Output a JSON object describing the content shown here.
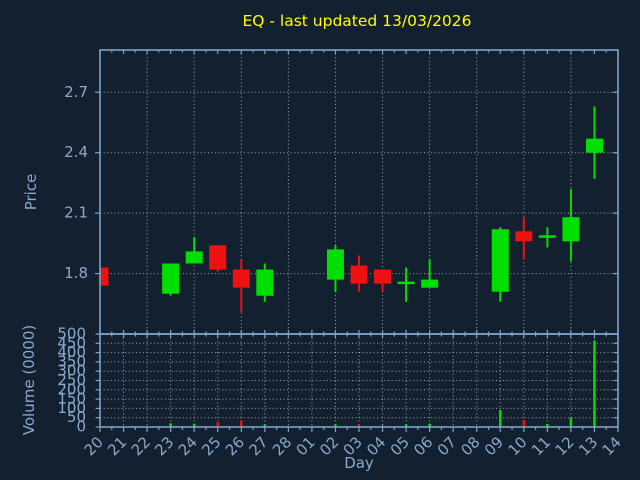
{
  "title": "EQ - last updated 13/03/2026",
  "colors": {
    "background": "#12202f",
    "spine": "#7ea3c9",
    "grid": "#c2c8cf",
    "axis_text": "#8aa9cb",
    "title": "#ffff00",
    "up": "#00df00",
    "down": "#ee1111"
  },
  "chart_data": [
    {
      "type": "candlestick",
      "title": "EQ - last updated 13/03/2026",
      "xlabel": "Day",
      "ylabel": "Price",
      "categories": [
        "20",
        "21",
        "22",
        "23",
        "24",
        "25",
        "26",
        "27",
        "28",
        "01",
        "02",
        "03",
        "04",
        "05",
        "06",
        "07",
        "08",
        "09",
        "10",
        "11",
        "12",
        "13",
        "14"
      ],
      "y_ticks": [
        1.8,
        2.1,
        2.4,
        2.7
      ],
      "ylim": [
        1.5,
        2.91
      ],
      "grid": "dotted; horizontal at each price tick; vertical every 2nd day",
      "legend": "none",
      "up_color": "#00df00",
      "down_color": "#ee1111",
      "candles": [
        {
          "day": "20",
          "open": 1.83,
          "high": 1.83,
          "low": 1.74,
          "close": 1.74
        },
        {
          "day": "23",
          "open": 1.7,
          "high": 1.85,
          "low": 1.69,
          "close": 1.85
        },
        {
          "day": "24",
          "open": 1.85,
          "high": 1.98,
          "low": 1.85,
          "close": 1.91
        },
        {
          "day": "25",
          "open": 1.94,
          "high": 1.94,
          "low": 1.81,
          "close": 1.82
        },
        {
          "day": "26",
          "open": 1.82,
          "high": 1.87,
          "low": 1.61,
          "close": 1.73
        },
        {
          "day": "27",
          "open": 1.69,
          "high": 1.85,
          "low": 1.66,
          "close": 1.82
        },
        {
          "day": "02",
          "open": 1.77,
          "high": 1.94,
          "low": 1.71,
          "close": 1.92
        },
        {
          "day": "03",
          "open": 1.84,
          "high": 1.89,
          "low": 1.71,
          "close": 1.75
        },
        {
          "day": "04",
          "open": 1.82,
          "high": 1.82,
          "low": 1.71,
          "close": 1.75
        },
        {
          "day": "05",
          "open": 1.75,
          "high": 1.83,
          "low": 1.66,
          "close": 1.76
        },
        {
          "day": "06",
          "open": 1.73,
          "high": 1.87,
          "low": 1.73,
          "close": 1.77
        },
        {
          "day": "09",
          "open": 1.71,
          "high": 2.03,
          "low": 1.66,
          "close": 2.02
        },
        {
          "day": "10",
          "open": 2.01,
          "high": 2.08,
          "low": 1.87,
          "close": 1.96
        },
        {
          "day": "11",
          "open": 1.98,
          "high": 2.03,
          "low": 1.93,
          "close": 1.99
        },
        {
          "day": "12",
          "open": 1.96,
          "high": 2.22,
          "low": 1.86,
          "close": 2.08
        },
        {
          "day": "13",
          "open": 2.4,
          "high": 2.63,
          "low": 2.27,
          "close": 2.47
        }
      ]
    },
    {
      "type": "bar",
      "xlabel": "Day",
      "ylabel": "Volume (0000)",
      "y_ticks": [
        0,
        50,
        100,
        150,
        200,
        250,
        300,
        350,
        400,
        450,
        500
      ],
      "ylim": [
        0,
        500
      ],
      "grid": "dotted; horizontal every 50; vertical every day",
      "values": [
        {
          "day": "23",
          "volume": 20,
          "direction": "up"
        },
        {
          "day": "24",
          "volume": 18,
          "direction": "up"
        },
        {
          "day": "25",
          "volume": 25,
          "direction": "down"
        },
        {
          "day": "26",
          "volume": 35,
          "direction": "down"
        },
        {
          "day": "27",
          "volume": 14,
          "direction": "up"
        },
        {
          "day": "02",
          "volume": 14,
          "direction": "up"
        },
        {
          "day": "03",
          "volume": 14,
          "direction": "down"
        },
        {
          "day": "04",
          "volume": 9,
          "direction": "down"
        },
        {
          "day": "05",
          "volume": 14,
          "direction": "up"
        },
        {
          "day": "06",
          "volume": 18,
          "direction": "up"
        },
        {
          "day": "09",
          "volume": 90,
          "direction": "up"
        },
        {
          "day": "10",
          "volume": 38,
          "direction": "down"
        },
        {
          "day": "11",
          "volume": 16,
          "direction": "up"
        },
        {
          "day": "12",
          "volume": 48,
          "direction": "up"
        },
        {
          "day": "13",
          "volume": 465,
          "direction": "up"
        }
      ]
    }
  ]
}
